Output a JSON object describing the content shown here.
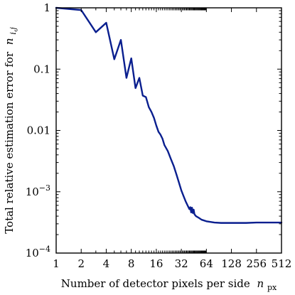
{
  "chart_data": {
    "type": "line",
    "xlabel": "Number of detector pixels per side",
    "xlabel_symbol": "n",
    "xlabel_subscript": "px",
    "ylabel": "Total relative estimation error for",
    "ylabel_symbol": "n",
    "ylabel_subscript": "i,j",
    "x_scale": "log2",
    "y_scale": "log10",
    "xlim": [
      1,
      512
    ],
    "ylim": [
      0.0001,
      1
    ],
    "x_ticks": [
      1,
      2,
      4,
      8,
      16,
      32,
      64,
      128,
      256,
      512
    ],
    "x_tick_labels": [
      "1",
      "2",
      "4",
      "8",
      "16",
      "32",
      "64",
      "128",
      "256",
      "512"
    ],
    "y_ticks": [
      0.0001,
      0.001,
      0.01,
      0.1,
      1
    ],
    "y_tick_labels": [
      {
        "base": "10",
        "exp": "−4"
      },
      {
        "base": "10",
        "exp": "−3"
      },
      {
        "base": "0.01",
        "exp": ""
      },
      {
        "base": "0.1",
        "exp": ""
      },
      {
        "base": "1",
        "exp": ""
      }
    ],
    "grid": false,
    "line_color": "#0a1f8f",
    "series": [
      {
        "x": [
          1,
          2,
          3,
          4,
          5,
          6,
          7,
          8,
          9,
          10,
          11,
          12,
          13,
          14,
          15,
          16,
          17,
          18,
          19,
          20,
          22,
          24,
          26,
          28,
          30,
          32,
          34,
          36,
          38,
          40,
          41,
          42,
          43,
          44,
          45,
          46,
          48,
          52,
          56,
          64,
          80,
          96,
          128,
          192,
          256,
          384,
          512
        ],
        "y": [
          1.0,
          0.92,
          0.4,
          0.57,
          0.145,
          0.3,
          0.072,
          0.15,
          0.049,
          0.072,
          0.037,
          0.035,
          0.024,
          0.02,
          0.016,
          0.012,
          0.0095,
          0.0085,
          0.0073,
          0.0058,
          0.0046,
          0.0034,
          0.0026,
          0.0019,
          0.0014,
          0.00105,
          0.00085,
          0.0007,
          0.0006,
          0.00052,
          0.00056,
          0.00046,
          0.00055,
          0.00045,
          0.00051,
          0.00043,
          0.0004,
          0.000375,
          0.00035,
          0.00033,
          0.000315,
          0.00031,
          0.00031,
          0.00031,
          0.000315,
          0.000315,
          0.000315
        ]
      }
    ]
  }
}
